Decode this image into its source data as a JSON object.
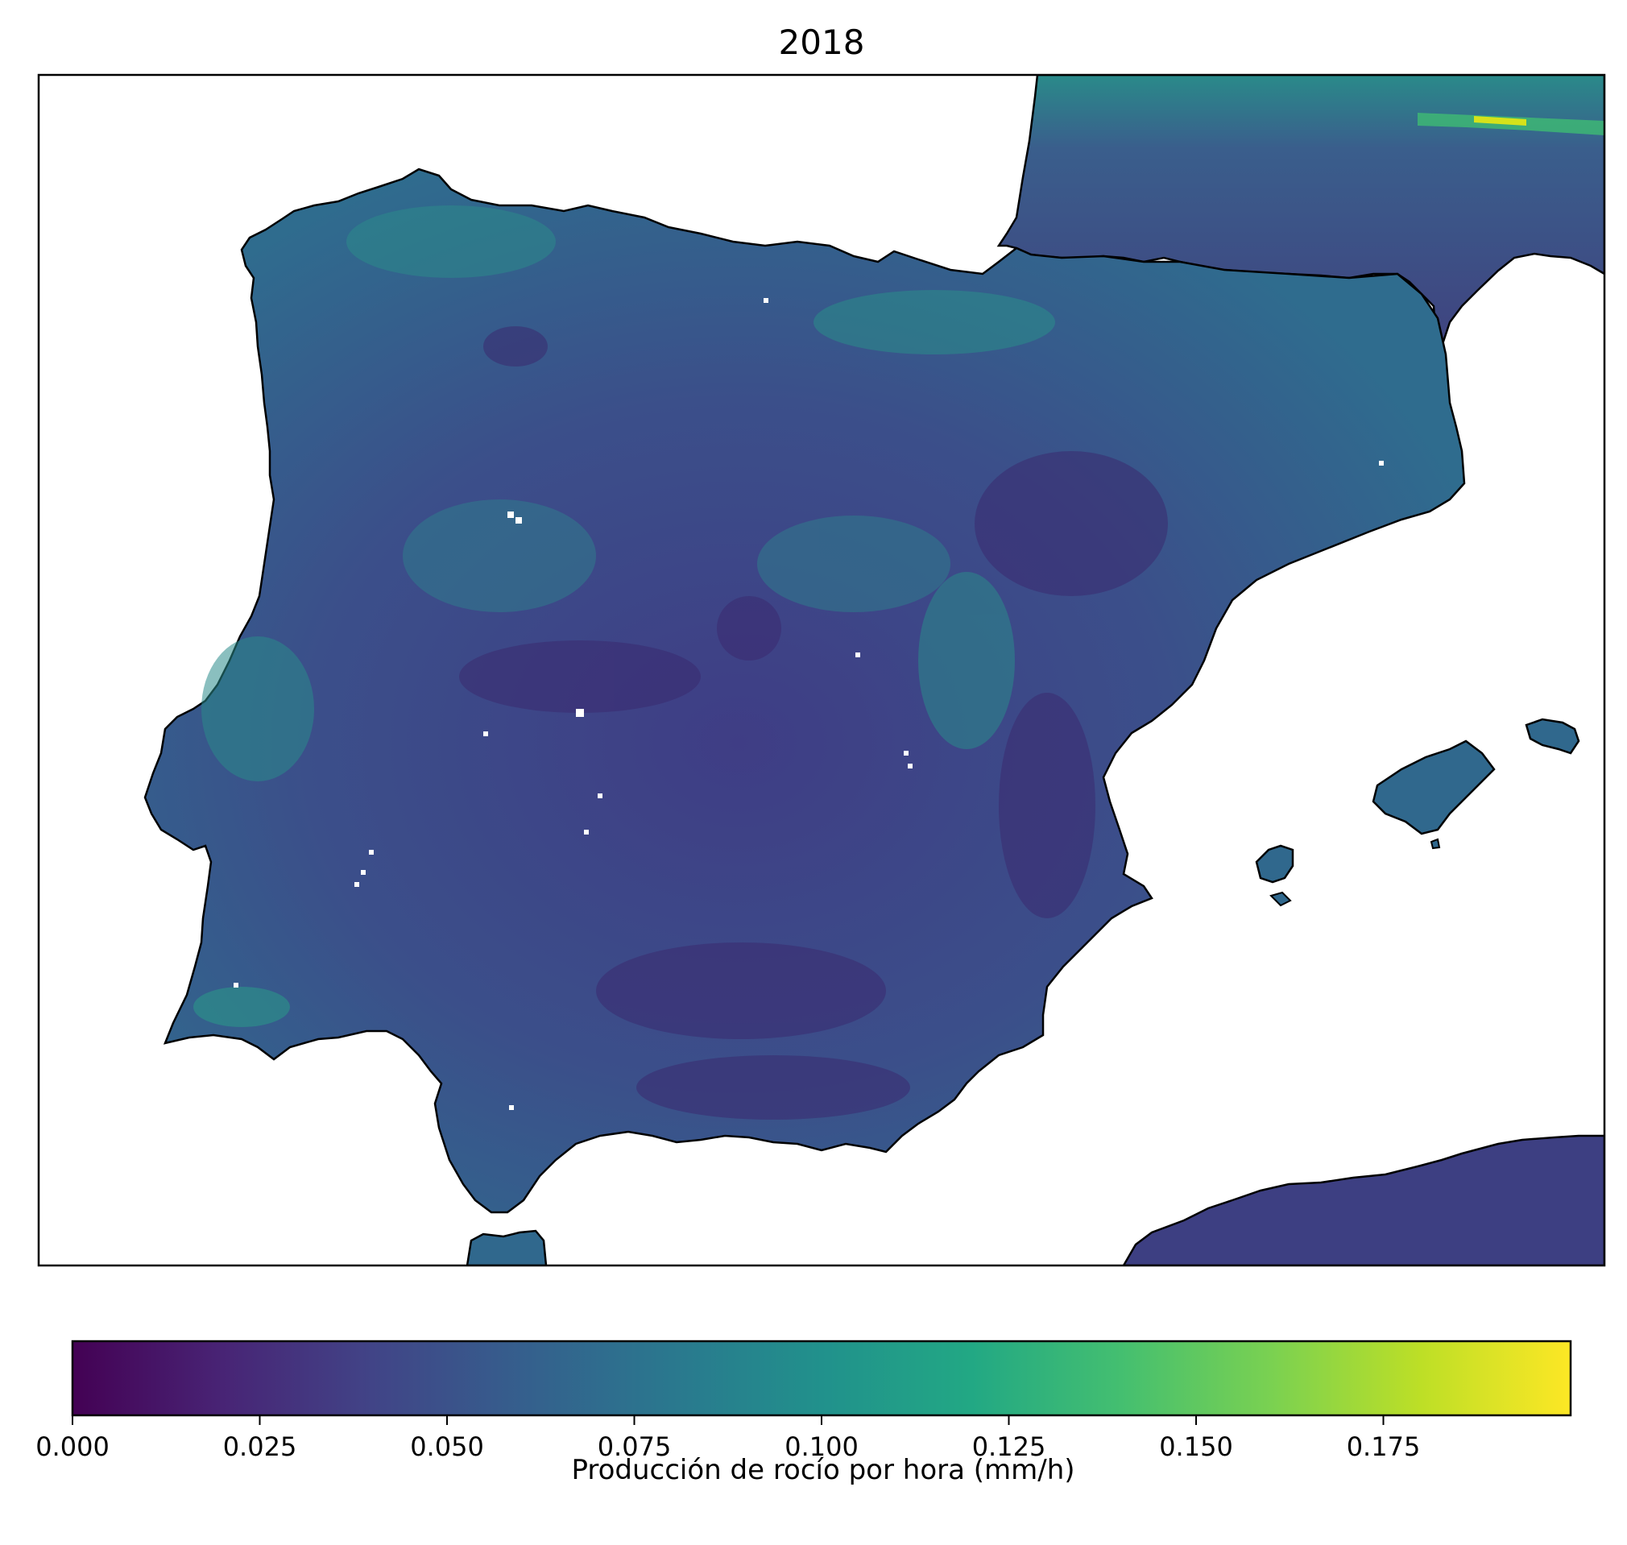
{
  "title": "2018",
  "colorbar": {
    "label": "Producción de rocío por hora (mm/h)",
    "colormap": "viridis",
    "min": 0.0,
    "max": 0.2,
    "ticks": [
      "0.000",
      "0.025",
      "0.050",
      "0.075",
      "0.100",
      "0.125",
      "0.150",
      "0.175"
    ],
    "orientation": "horizontal"
  },
  "map": {
    "region": "Iberian Peninsula and Balearic Islands",
    "land_color_typical": "#3d4e8a",
    "sea_color": "#ffffff",
    "coastline_color": "#000000"
  }
}
